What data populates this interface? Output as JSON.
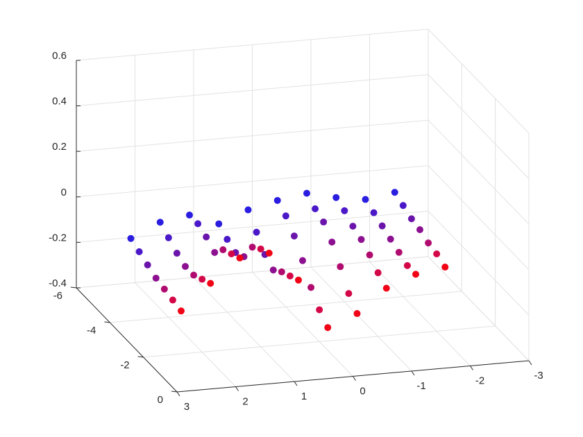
{
  "chart_data": {
    "type": "scatter3d",
    "xlim": [
      3,
      -3
    ],
    "ylim": [
      0,
      -6
    ],
    "zlim": [
      -0.4,
      0.6
    ],
    "xticks": [
      3,
      2,
      1,
      0,
      -1,
      -2,
      -3
    ],
    "yticks": [
      0,
      -2,
      -4,
      -6
    ],
    "zticks": [
      -0.4,
      -0.2,
      0,
      0.2,
      0.4,
      0.6
    ],
    "grid": true,
    "x": [
      2.5,
      2,
      1.5,
      1,
      0.5,
      0,
      -0.5,
      -1,
      -1.5,
      -2
    ],
    "series": [
      {
        "y": -4.5,
        "color": "#2a1de0",
        "values": [
          -0.08,
          -0.02,
          0.0,
          -0.05,
          0.0,
          0.03,
          0.05,
          0.02,
          0.0,
          0.02
        ]
      },
      {
        "y": -4.0,
        "color": "#4a18c8",
        "values": [
          -0.1,
          -0.05,
          0.0,
          -0.08,
          -0.06,
          0.0,
          0.02,
          0.0,
          -0.02,
          0.0
        ]
      },
      {
        "y": -3.5,
        "color": "#6a14ab",
        "values": [
          -0.12,
          -0.08,
          -0.02,
          -0.1,
          -0.12,
          -0.05,
          0.0,
          -0.03,
          -0.04,
          -0.02
        ]
      },
      {
        "y": -3.0,
        "color": "#8c1090",
        "values": [
          -0.14,
          -0.1,
          -0.05,
          -0.08,
          -0.15,
          -0.12,
          -0.05,
          -0.05,
          -0.06,
          -0.03
        ]
      },
      {
        "y": -2.5,
        "color": "#b00c70",
        "values": [
          -0.15,
          -0.1,
          0.0,
          0.0,
          -0.12,
          -0.2,
          -0.12,
          -0.08,
          -0.08,
          -0.05
        ]
      },
      {
        "y": -2.0,
        "color": "#d40848",
        "values": [
          -0.16,
          -0.08,
          0.02,
          0.03,
          -0.1,
          -0.26,
          -0.2,
          -0.12,
          -0.1,
          -0.06
        ]
      },
      {
        "y": -1.5,
        "color": "#f00416",
        "values": [
          -0.17,
          -0.06,
          0.04,
          0.05,
          -0.08,
          -0.3,
          -0.25,
          -0.15,
          -0.1,
          -0.08
        ]
      }
    ]
  }
}
